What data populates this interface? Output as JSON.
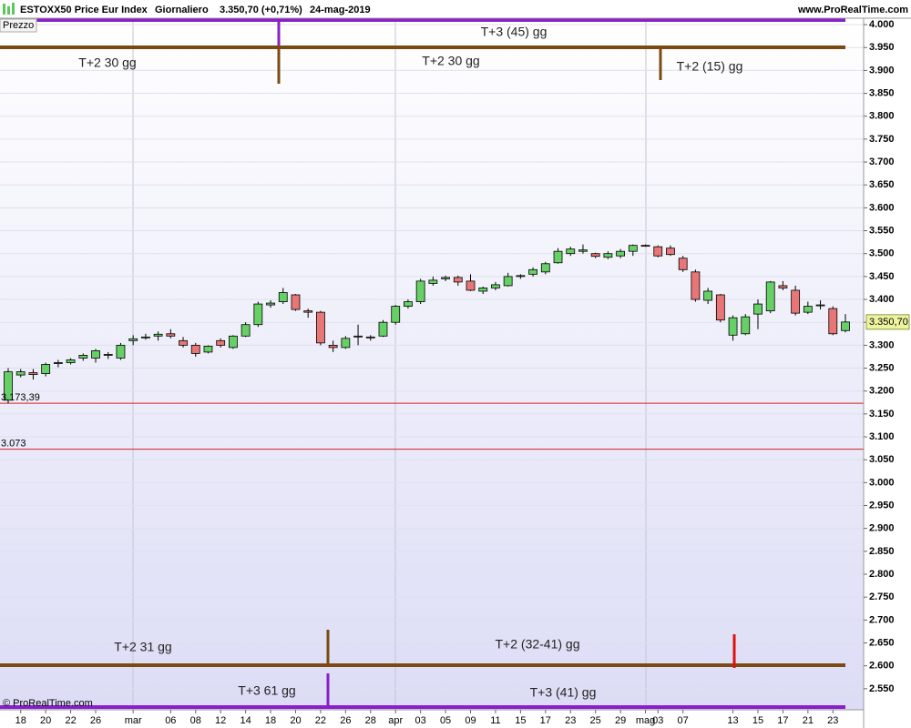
{
  "chart_data": {
    "type": "candlestick",
    "title": "ESTOXX50 Price Eur Index",
    "period": "Giornaliero",
    "quote": "3.350,70 (+0,71%)",
    "date": "24-mag-2019",
    "source": "www.ProRealTime.com",
    "panel_label": "Prezzo",
    "copyright": "© ProRealTime.com",
    "categories": [
      null,
      "18",
      null,
      "20",
      null,
      "22",
      null,
      "26",
      null,
      null,
      "mar",
      null,
      null,
      "06",
      null,
      "08",
      null,
      "12",
      null,
      "14",
      null,
      "18",
      null,
      "20",
      null,
      "22",
      null,
      "26",
      null,
      "28",
      null,
      "apr",
      null,
      "03",
      null,
      "05",
      null,
      "09",
      null,
      "11",
      null,
      "15",
      null,
      "17",
      null,
      "23",
      null,
      "25",
      null,
      "29",
      null,
      "mag",
      "03",
      null,
      "07",
      null,
      null,
      null,
      "13",
      null,
      "15",
      null,
      "17",
      null,
      "21",
      null,
      "23",
      null
    ],
    "open": [
      3180,
      3235,
      3240,
      3238,
      3260,
      3262,
      3272,
      3272,
      3278,
      3272,
      3310,
      3318,
      3320,
      3325,
      3310,
      3300,
      3285,
      3310,
      3295,
      3320,
      3345,
      3388,
      3395,
      3410,
      3375,
      3372,
      3300,
      3295,
      3320,
      3318,
      3320,
      3350,
      3385,
      3395,
      3435,
      3445,
      3448,
      3440,
      3418,
      3425,
      3430,
      3450,
      3455,
      3460,
      3480,
      3500,
      3505,
      3500,
      3492,
      3495,
      3505,
      3518,
      3515,
      3512,
      3490,
      3460,
      3398,
      3410,
      3322,
      3325,
      3368,
      3375,
      3430,
      3420,
      3372,
      3388,
      3380,
      3332
    ],
    "high": [
      3250,
      3248,
      3248,
      3262,
      3268,
      3272,
      3282,
      3292,
      3285,
      3305,
      3322,
      3325,
      3330,
      3335,
      3318,
      3305,
      3300,
      3315,
      3322,
      3350,
      3395,
      3398,
      3425,
      3412,
      3380,
      3375,
      3310,
      3320,
      3345,
      3322,
      3355,
      3388,
      3400,
      3445,
      3450,
      3452,
      3452,
      3455,
      3428,
      3438,
      3458,
      3455,
      3470,
      3482,
      3512,
      3515,
      3520,
      3502,
      3505,
      3510,
      3520,
      3520,
      3518,
      3518,
      3495,
      3465,
      3425,
      3412,
      3365,
      3368,
      3400,
      3440,
      3440,
      3430,
      3395,
      3398,
      3385,
      3368
    ],
    "low": [
      3173,
      3230,
      3225,
      3232,
      3252,
      3258,
      3266,
      3262,
      3270,
      3268,
      3300,
      3312,
      3310,
      3315,
      3295,
      3275,
      3282,
      3295,
      3292,
      3318,
      3340,
      3382,
      3390,
      3375,
      3360,
      3300,
      3285,
      3292,
      3300,
      3310,
      3318,
      3345,
      3380,
      3390,
      3430,
      3440,
      3430,
      3418,
      3412,
      3420,
      3428,
      3445,
      3450,
      3455,
      3478,
      3495,
      3500,
      3490,
      3488,
      3490,
      3495,
      3515,
      3492,
      3495,
      3460,
      3395,
      3390,
      3350,
      3310,
      3322,
      3335,
      3370,
      3420,
      3365,
      3368,
      3378,
      3322,
      3328
    ],
    "close": [
      3242,
      3242,
      3236,
      3258,
      3262,
      3268,
      3278,
      3288,
      3280,
      3300,
      3314,
      3318,
      3324,
      3320,
      3300,
      3282,
      3298,
      3300,
      3320,
      3345,
      3390,
      3392,
      3415,
      3378,
      3372,
      3305,
      3295,
      3315,
      3318,
      3316,
      3350,
      3385,
      3395,
      3440,
      3442,
      3448,
      3438,
      3420,
      3425,
      3432,
      3450,
      3452,
      3465,
      3478,
      3505,
      3510,
      3508,
      3494,
      3500,
      3505,
      3518,
      3517,
      3495,
      3498,
      3465,
      3400,
      3418,
      3355,
      3360,
      3362,
      3390,
      3438,
      3425,
      3370,
      3385,
      3388,
      3325,
      3350.7
    ],
    "up_color": "#66d066",
    "down_color": "#e87676",
    "last": {
      "value": 3350.7,
      "label": "3.350,70"
    },
    "hlines": [
      {
        "value": 3173.39,
        "label": "3.173,39"
      },
      {
        "value": 3073,
        "label": "3.073"
      }
    ],
    "hline_color": "#d42020",
    "annotations": [
      "T+3 (45) gg",
      "T+2 30 gg",
      "T+2 30 gg",
      "T+2 (15) gg",
      "T+2 31 gg",
      "T+2 (32-41) gg",
      "T+3 61 gg",
      "T+3 (41) gg"
    ],
    "ylim": [
      2504,
      4014
    ],
    "yticks": [
      {
        "value": 4000,
        "label": "4.000"
      },
      {
        "value": 3950,
        "label": "3.950"
      },
      {
        "value": 3900,
        "label": "3.900"
      },
      {
        "value": 3850,
        "label": "3.850"
      },
      {
        "value": 3800,
        "label": "3.800"
      },
      {
        "value": 3750,
        "label": "3.750"
      },
      {
        "value": 3700,
        "label": "3.700"
      },
      {
        "value": 3650,
        "label": "3.650"
      },
      {
        "value": 3600,
        "label": "3.600"
      },
      {
        "value": 3550,
        "label": "3.550"
      },
      {
        "value": 3500,
        "label": "3.500"
      },
      {
        "value": 3450,
        "label": "3.450"
      },
      {
        "value": 3400,
        "label": "3.400"
      },
      {
        "value": 3350,
        "label": "3.350"
      },
      {
        "value": 3300,
        "label": "3.300"
      },
      {
        "value": 3250,
        "label": "3.250"
      },
      {
        "value": 3200,
        "label": "3.200"
      },
      {
        "value": 3150,
        "label": "3.150"
      },
      {
        "value": 3100,
        "label": "3.100"
      },
      {
        "value": 3050,
        "label": "3.050"
      },
      {
        "value": 3000,
        "label": "3.000"
      },
      {
        "value": 2950,
        "label": "2.950"
      },
      {
        "value": 2900,
        "label": "2.900"
      },
      {
        "value": 2850,
        "label": "2.850"
      },
      {
        "value": 2800,
        "label": "2.800"
      },
      {
        "value": 2750,
        "label": "2.750"
      },
      {
        "value": 2700,
        "label": "2.700"
      },
      {
        "value": 2650,
        "label": "2.650"
      },
      {
        "value": 2600,
        "label": "2.600"
      },
      {
        "value": 2550,
        "label": "2.550"
      }
    ],
    "grid": true
  }
}
